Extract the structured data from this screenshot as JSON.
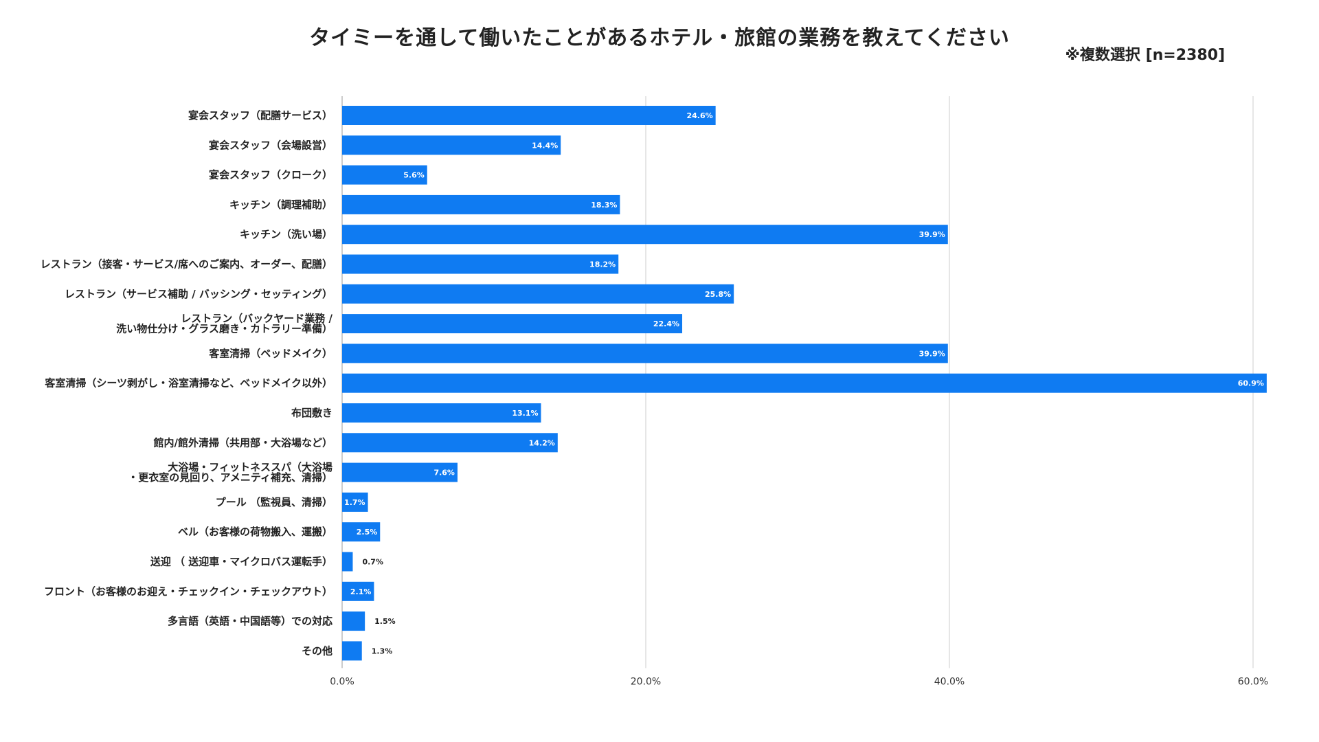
{
  "chart_data": {
    "type": "bar",
    "orientation": "horizontal",
    "title": "タイミーを通して働いたことがあるホテル・旅館の業務を教えてください",
    "subtitle": "※複数選択 [n=2380]",
    "xlabel": "",
    "ylabel": "",
    "xlim": [
      0,
      60
    ],
    "x_ticks": [
      "0.0%",
      "20.0%",
      "40.0%",
      "60.0%"
    ],
    "x_tick_values": [
      0,
      20,
      40,
      60
    ],
    "grid": true,
    "bar_color": "#0F7BF2",
    "categories": [
      [
        "宴会スタッフ（配膳サービス）"
      ],
      [
        "宴会スタッフ（会場設営）"
      ],
      [
        "宴会スタッフ（クローク）"
      ],
      [
        "キッチン（調理補助）"
      ],
      [
        "キッチン（洗い場）"
      ],
      [
        "レストラン（接客・サービス/席へのご案内、オーダー、配膳）"
      ],
      [
        "レストラン（サービス補助 / バッシング・セッティング）"
      ],
      [
        "レストラン（バックヤード業務 /",
        "洗い物仕分け・グラス磨き・カトラリー準備）"
      ],
      [
        "客室清掃（ベッドメイク）"
      ],
      [
        "客室清掃（シーツ剥がし・浴室清掃など、ベッドメイク以外）"
      ],
      [
        "布団敷き"
      ],
      [
        "館内/館外清掃（共用部・大浴場など）"
      ],
      [
        "大浴場・フィットネススパ（大浴場",
        "・更衣室の見回り、アメニティ補充、清掃）"
      ],
      [
        "プール （監視員、清掃）"
      ],
      [
        "ベル（お客様の荷物搬入、運搬）"
      ],
      [
        "送迎 （ 送迎車・マイクロバス運転手）"
      ],
      [
        "フロント（お客様のお迎え・チェックイン・チェックアウト）"
      ],
      [
        "多言語（英語・中国語等）での対応"
      ],
      [
        "その他"
      ]
    ],
    "values": [
      24.6,
      14.4,
      5.6,
      18.3,
      39.9,
      18.2,
      25.8,
      22.4,
      39.9,
      60.9,
      13.1,
      14.2,
      7.6,
      1.7,
      2.5,
      0.7,
      2.1,
      1.5,
      1.3
    ],
    "value_labels": [
      "24.6%",
      "14.4%",
      "5.6%",
      "18.3%",
      "39.9%",
      "18.2%",
      "25.8%",
      "22.4%",
      "39.9%",
      "60.9%",
      "13.1%",
      "14.2%",
      "7.6%",
      "1.7%",
      "2.5%",
      "0.7%",
      "2.1%",
      "1.5%",
      "1.3%"
    ]
  }
}
